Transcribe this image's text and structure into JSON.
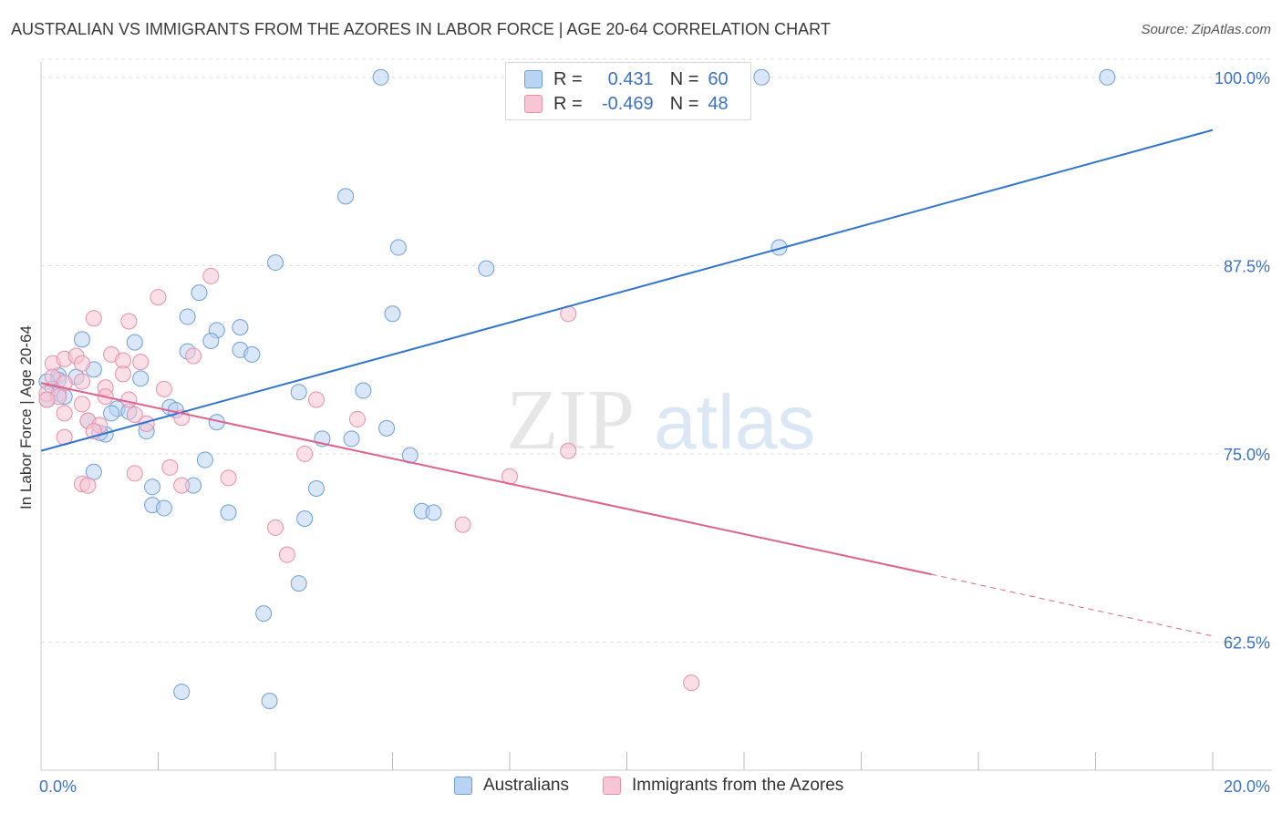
{
  "title": "AUSTRALIAN VS IMMIGRANTS FROM THE AZORES IN LABOR FORCE | AGE 20-64 CORRELATION CHART",
  "source": "Source: ZipAtlas.com",
  "watermark": {
    "zip": "ZIP",
    "atlas": "atlas"
  },
  "colors": {
    "blue_fill": "#b9d3f3",
    "blue_stroke": "#6d9fd9",
    "blue_line": "#2f74d0",
    "pink_fill": "#f8c5d4",
    "pink_stroke": "#e98ea9",
    "pink_line": "#e0618c",
    "axis_label": "#3a72c8",
    "grid": "#dddddd"
  },
  "legend": {
    "rows": [
      {
        "r_label": "R =",
        "r_value": " 0.431",
        "n_label": "N =",
        "n_value": "60"
      },
      {
        "r_label": "R =",
        "r_value": "-0.469",
        "n_label": "N =",
        "n_value": "48"
      }
    ]
  },
  "chart_data": {
    "type": "scatter",
    "xlabel": "",
    "ylabel": "In Labor Force | Age 20-64",
    "xlim": [
      0,
      20
    ],
    "ylim": [
      54,
      101.5
    ],
    "x_tick_labels": [
      "0.0%",
      "20.0%"
    ],
    "y_ticks": [
      62.5,
      75.0,
      87.5,
      100.0
    ],
    "y_tick_labels": [
      "62.5%",
      "75.0%",
      "87.5%",
      "100.0%"
    ],
    "grid": true,
    "legend_position": "top-center",
    "series": [
      {
        "name": "Australians",
        "color": "#6d9fd9",
        "points": [
          [
            5.8,
            100.0
          ],
          [
            12.3,
            100.0
          ],
          [
            18.2,
            100.0
          ],
          [
            5.2,
            92.1
          ],
          [
            6.1,
            88.7
          ],
          [
            7.6,
            87.3
          ],
          [
            12.6,
            88.7
          ],
          [
            4.0,
            87.7
          ],
          [
            2.7,
            85.7
          ],
          [
            2.5,
            84.1
          ],
          [
            6.0,
            84.3
          ],
          [
            3.0,
            83.2
          ],
          [
            3.4,
            83.4
          ],
          [
            0.7,
            82.6
          ],
          [
            1.6,
            82.4
          ],
          [
            2.9,
            82.5
          ],
          [
            2.5,
            81.8
          ],
          [
            3.4,
            81.9
          ],
          [
            3.6,
            81.6
          ],
          [
            0.9,
            80.6
          ],
          [
            0.3,
            80.2
          ],
          [
            0.6,
            80.1
          ],
          [
            1.7,
            80.0
          ],
          [
            0.3,
            79.9
          ],
          [
            0.1,
            79.8
          ],
          [
            0.2,
            79.3
          ],
          [
            0.3,
            79.0
          ],
          [
            0.4,
            78.8
          ],
          [
            0.1,
            78.6
          ],
          [
            4.4,
            79.1
          ],
          [
            5.5,
            79.2
          ],
          [
            2.2,
            78.1
          ],
          [
            2.3,
            77.9
          ],
          [
            1.3,
            78.0
          ],
          [
            1.5,
            77.8
          ],
          [
            1.2,
            77.7
          ],
          [
            0.8,
            77.2
          ],
          [
            3.0,
            77.1
          ],
          [
            1.1,
            76.3
          ],
          [
            1.0,
            76.4
          ],
          [
            1.8,
            76.5
          ],
          [
            4.8,
            76.0
          ],
          [
            5.3,
            76.0
          ],
          [
            5.9,
            76.7
          ],
          [
            6.3,
            74.9
          ],
          [
            0.9,
            73.8
          ],
          [
            2.8,
            74.6
          ],
          [
            2.6,
            72.9
          ],
          [
            1.9,
            72.8
          ],
          [
            4.7,
            72.7
          ],
          [
            1.9,
            71.6
          ],
          [
            2.1,
            71.4
          ],
          [
            3.2,
            71.1
          ],
          [
            4.5,
            70.7
          ],
          [
            6.5,
            71.2
          ],
          [
            6.7,
            71.1
          ],
          [
            4.4,
            66.4
          ],
          [
            3.8,
            64.4
          ],
          [
            2.4,
            59.2
          ],
          [
            3.9,
            58.6
          ]
        ]
      },
      {
        "name": "Immigrants from the Azores",
        "color": "#e98ea9",
        "points": [
          [
            2.9,
            86.8
          ],
          [
            2.0,
            85.4
          ],
          [
            0.9,
            84.0
          ],
          [
            1.5,
            83.8
          ],
          [
            9.0,
            84.3
          ],
          [
            1.2,
            81.6
          ],
          [
            1.4,
            81.2
          ],
          [
            1.7,
            81.1
          ],
          [
            2.6,
            81.5
          ],
          [
            0.2,
            81.0
          ],
          [
            0.4,
            81.3
          ],
          [
            0.6,
            81.5
          ],
          [
            0.7,
            81.0
          ],
          [
            1.4,
            80.3
          ],
          [
            0.2,
            80.1
          ],
          [
            0.4,
            79.7
          ],
          [
            0.7,
            79.8
          ],
          [
            1.1,
            79.4
          ],
          [
            2.1,
            79.3
          ],
          [
            0.1,
            79.0
          ],
          [
            0.3,
            78.8
          ],
          [
            0.1,
            78.6
          ],
          [
            1.1,
            78.8
          ],
          [
            1.5,
            78.6
          ],
          [
            4.7,
            78.6
          ],
          [
            0.7,
            78.3
          ],
          [
            1.6,
            77.6
          ],
          [
            2.4,
            77.4
          ],
          [
            5.4,
            77.3
          ],
          [
            0.4,
            77.7
          ],
          [
            0.8,
            77.2
          ],
          [
            1.0,
            76.9
          ],
          [
            1.8,
            77.0
          ],
          [
            0.9,
            76.5
          ],
          [
            0.4,
            76.1
          ],
          [
            4.5,
            75.0
          ],
          [
            9.0,
            75.2
          ],
          [
            2.2,
            74.1
          ],
          [
            1.6,
            73.7
          ],
          [
            3.2,
            73.4
          ],
          [
            8.0,
            73.5
          ],
          [
            0.7,
            73.0
          ],
          [
            0.8,
            72.9
          ],
          [
            2.4,
            72.9
          ],
          [
            4.0,
            70.1
          ],
          [
            7.2,
            70.3
          ],
          [
            4.2,
            68.3
          ],
          [
            11.1,
            59.8
          ]
        ]
      }
    ],
    "trendlines": [
      {
        "series": "Australians",
        "x": [
          0,
          20
        ],
        "y": [
          75.2,
          96.5
        ],
        "style": "solid"
      },
      {
        "series": "Immigrants from the Azores",
        "x": [
          0,
          15.2
        ],
        "y": [
          79.7,
          67.0
        ],
        "style": "solid"
      },
      {
        "series": "Immigrants from the Azores",
        "x": [
          15.2,
          20
        ],
        "y": [
          67.0,
          62.9
        ],
        "style": "dashed"
      }
    ]
  }
}
